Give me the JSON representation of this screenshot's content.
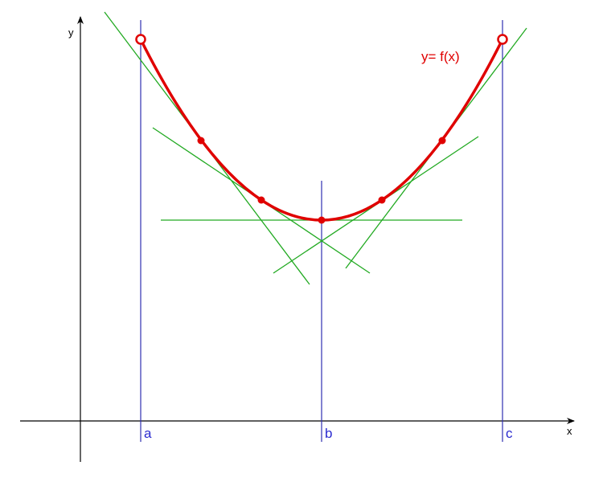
{
  "axes": {
    "x_label": "x",
    "y_label": "y"
  },
  "markers": [
    "a",
    "b",
    "c"
  ],
  "curve_label": "y= f(x)"
}
